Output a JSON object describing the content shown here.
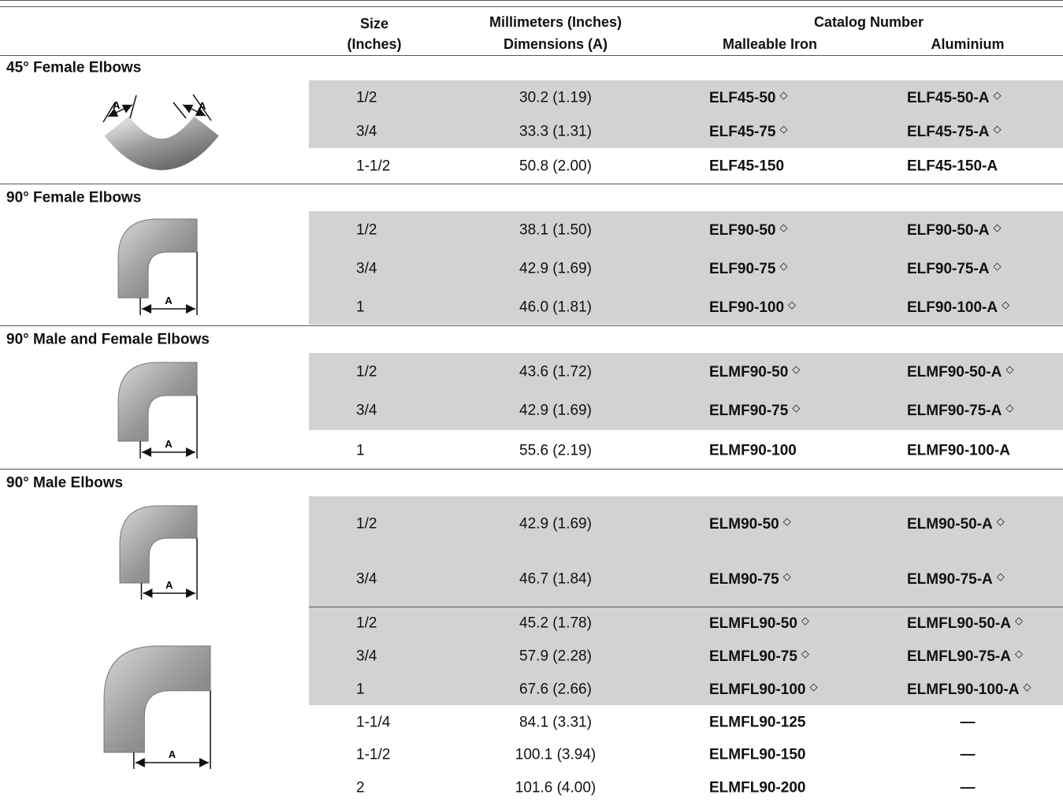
{
  "header": {
    "size": "Size",
    "size_unit": "(Inches)",
    "dimensions_title": "Millimeters (Inches)",
    "dimensions": "Dimensions (A)",
    "catalog_number": "Catalog Number",
    "malleable_iron": "Malleable Iron",
    "aluminium": "Aluminium"
  },
  "dimension_label": "A",
  "sections": [
    {
      "title": "45° Female Elbows",
      "rows": [
        {
          "size": "1/2",
          "dimensions": "30.2 (1.19)",
          "malleable_iron": "ELF45-50",
          "malleable_iron_mark": "◇",
          "aluminium": "ELF45-50-A",
          "aluminium_mark": "◇"
        },
        {
          "size": "3/4",
          "dimensions": "33.3 (1.31)",
          "malleable_iron": "ELF45-75",
          "malleable_iron_mark": "◇",
          "aluminium": "ELF45-75-A",
          "aluminium_mark": "◇"
        },
        {
          "size": "1-1/2",
          "dimensions": "50.8 (2.00)",
          "malleable_iron": "ELF45-150",
          "aluminium": "ELF45-150-A"
        }
      ]
    },
    {
      "title": "90° Female Elbows",
      "rows": [
        {
          "size": "1/2",
          "dimensions": "38.1 (1.50)",
          "malleable_iron": "ELF90-50",
          "malleable_iron_mark": "◇",
          "aluminium": "ELF90-50-A",
          "aluminium_mark": "◇"
        },
        {
          "size": "3/4",
          "dimensions": "42.9 (1.69)",
          "malleable_iron": "ELF90-75",
          "malleable_iron_mark": "◇",
          "aluminium": "ELF90-75-A",
          "aluminium_mark": "◇"
        },
        {
          "size": "1",
          "dimensions": "46.0 (1.81)",
          "malleable_iron": "ELF90-100",
          "malleable_iron_mark": "◇",
          "aluminium": "ELF90-100-A",
          "aluminium_mark": "◇"
        }
      ]
    },
    {
      "title": "90° Male and Female Elbows",
      "rows": [
        {
          "size": "1/2",
          "dimensions": "43.6 (1.72)",
          "malleable_iron": "ELMF90-50",
          "malleable_iron_mark": "◇",
          "aluminium": "ELMF90-50-A",
          "aluminium_mark": "◇"
        },
        {
          "size": "3/4",
          "dimensions": "42.9 (1.69)",
          "malleable_iron": "ELMF90-75",
          "malleable_iron_mark": "◇",
          "aluminium": "ELMF90-75-A",
          "aluminium_mark": "◇"
        },
        {
          "size": "1",
          "dimensions": "55.6 (2.19)",
          "malleable_iron": "ELMF90-100",
          "aluminium": "ELMF90-100-A"
        }
      ]
    },
    {
      "title": "90° Male Elbows",
      "rows": [
        {
          "size": "1/2",
          "dimensions": "42.9 (1.69)",
          "malleable_iron": "ELM90-50",
          "malleable_iron_mark": "◇",
          "aluminium": "ELM90-50-A",
          "aluminium_mark": "◇"
        },
        {
          "size": "3/4",
          "dimensions": "46.7 (1.84)",
          "malleable_iron": "ELM90-75",
          "malleable_iron_mark": "◇",
          "aluminium": "ELM90-75-A",
          "aluminium_mark": "◇"
        },
        {
          "size": "1/2",
          "dimensions": "45.2 (1.78)",
          "malleable_iron": "ELMFL90-50",
          "malleable_iron_mark": "◇",
          "aluminium": "ELMFL90-50-A",
          "aluminium_mark": "◇"
        },
        {
          "size": "3/4",
          "dimensions": "57.9 (2.28)",
          "malleable_iron": "ELMFL90-75",
          "malleable_iron_mark": "◇",
          "aluminium": "ELMFL90-75-A",
          "aluminium_mark": "◇"
        },
        {
          "size": "1",
          "dimensions": "67.6 (2.66)",
          "malleable_iron": "ELMFL90-100",
          "malleable_iron_mark": "◇",
          "aluminium": "ELMFL90-100-A",
          "aluminium_mark": "◇"
        },
        {
          "size": "1-1/4",
          "dimensions": "84.1 (3.31)",
          "malleable_iron": "ELMFL90-125",
          "aluminium": "—"
        },
        {
          "size": "1-1/2",
          "dimensions": "100.1 (3.94)",
          "malleable_iron": "ELMFL90-150",
          "aluminium": "—"
        },
        {
          "size": "2",
          "dimensions": "101.6 (4.00)",
          "malleable_iron": "ELMFL90-200",
          "aluminium": "—"
        }
      ]
    }
  ]
}
